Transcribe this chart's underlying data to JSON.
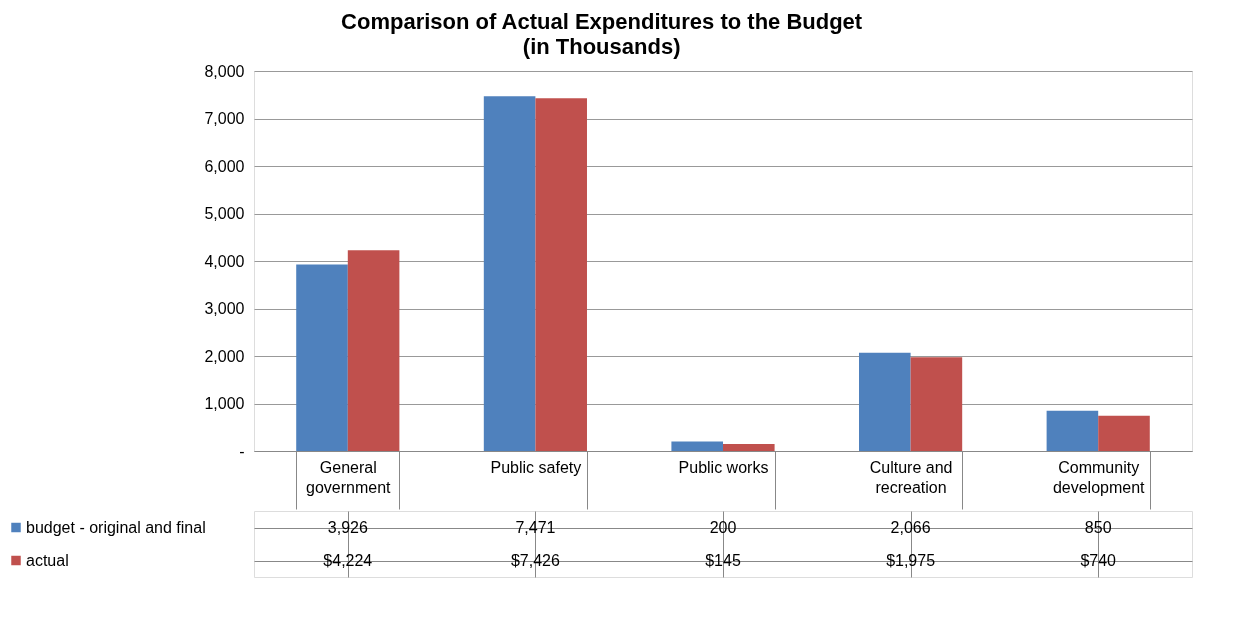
{
  "chart_data": {
    "type": "bar",
    "title": "Comparison of Actual Expenditures to the Budget",
    "subtitle": "(in Thousands)",
    "categories": [
      "General government",
      "Public safety",
      "Public works",
      "Culture and recreation",
      "Community development"
    ],
    "series": [
      {
        "name": "budget - original and final",
        "color": "#4f81bd",
        "values": [
          3926,
          7471,
          200,
          2066,
          850
        ],
        "value_labels": [
          "3,926",
          "7,471",
          "200",
          "2,066",
          "850"
        ]
      },
      {
        "name": "actual",
        "color": "#c0504d",
        "values": [
          4224,
          7426,
          145,
          1975,
          740
        ],
        "value_labels": [
          "$4,224",
          "$7,426",
          "$145",
          "$1,975",
          "$740"
        ]
      }
    ],
    "ylim": [
      0,
      8000
    ],
    "yticks": [
      {
        "value": 0,
        "label": "-"
      },
      {
        "value": 1000,
        "label": "1,000"
      },
      {
        "value": 2000,
        "label": "2,000"
      },
      {
        "value": 3000,
        "label": "3,000"
      },
      {
        "value": 4000,
        "label": "4,000"
      },
      {
        "value": 5000,
        "label": "5,000"
      },
      {
        "value": 6000,
        "label": "6,000"
      },
      {
        "value": 7000,
        "label": "7,000"
      },
      {
        "value": 8000,
        "label": "8,000"
      }
    ],
    "grid": "y",
    "legend": "bottom"
  }
}
